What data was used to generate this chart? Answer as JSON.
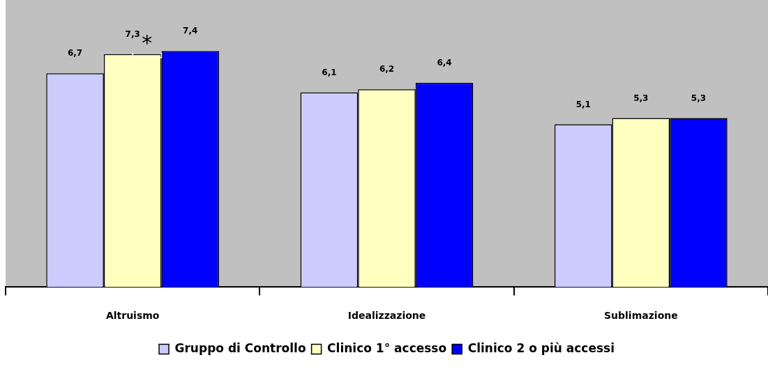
{
  "chart_data": {
    "type": "bar",
    "categories": [
      "Altruismo",
      "Idealizzazione",
      "Sublimazione"
    ],
    "series": [
      {
        "name": "Gruppo di Controllo",
        "color": "#ccccff",
        "values": [
          6.7,
          6.1,
          5.1
        ],
        "value_labels": [
          "6,7",
          "6,1",
          "5,1"
        ]
      },
      {
        "name": "Clinico 1° accesso",
        "color": "#ffffc0",
        "values": [
          7.3,
          6.2,
          5.3
        ],
        "value_labels": [
          "7,3",
          "6,2",
          "5,3"
        ]
      },
      {
        "name": "Clinico 2 o più accessi",
        "color": "#0000ff",
        "values": [
          7.4,
          6.4,
          5.3
        ],
        "value_labels": [
          "7,4",
          "6,4",
          "5,3"
        ]
      }
    ],
    "tick_labels": "x",
    "grid": false,
    "legend": "bottom",
    "annotations": [
      {
        "text": "*",
        "x": "Altruismo",
        "y": 7.3
      }
    ]
  }
}
